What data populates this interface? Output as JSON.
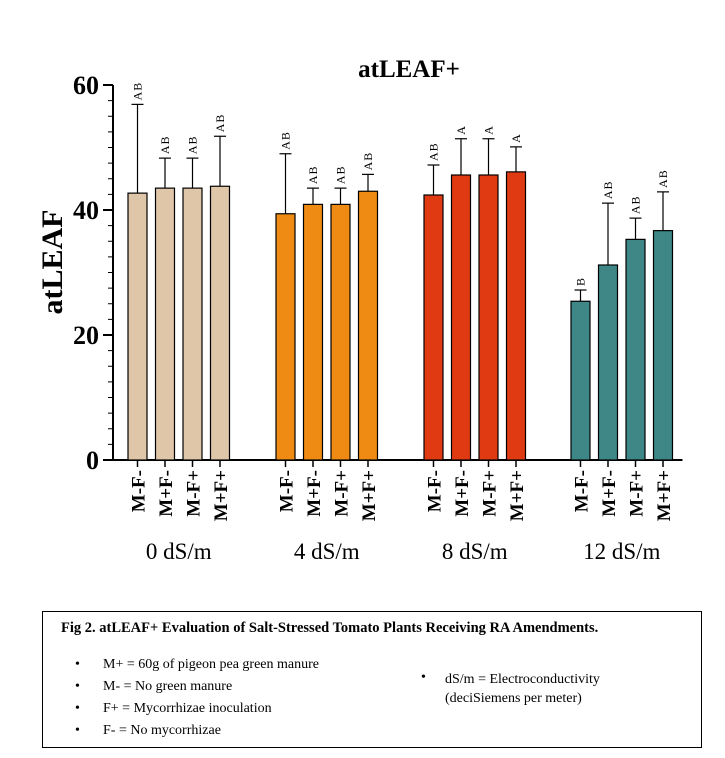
{
  "chart_data": {
    "type": "bar",
    "title": "atLEAF+",
    "ylabel": "atLEAF",
    "ylim": [
      0,
      60
    ],
    "yticks": [
      "0",
      "20",
      "40",
      "60"
    ],
    "groups": [
      {
        "label": "0 dS/m",
        "color": "#dfc6a8",
        "bars": [
          {
            "category": "M-F-",
            "value": 42.7,
            "error": 14.2,
            "sig": "AB"
          },
          {
            "category": "M+F-",
            "value": 43.5,
            "error": 4.8,
            "sig": "AB"
          },
          {
            "category": "M-F+",
            "value": 43.5,
            "error": 4.8,
            "sig": "AB"
          },
          {
            "category": "M+F+",
            "value": 43.8,
            "error": 8.0,
            "sig": "AB"
          }
        ]
      },
      {
        "label": "4 dS/m",
        "color": "#ef8a12",
        "bars": [
          {
            "category": "M-F-",
            "value": 39.4,
            "error": 9.6,
            "sig": "AB"
          },
          {
            "category": "M+F-",
            "value": 40.9,
            "error": 2.6,
            "sig": "AB"
          },
          {
            "category": "M-F+",
            "value": 40.9,
            "error": 2.6,
            "sig": "AB"
          },
          {
            "category": "M+F+",
            "value": 43.0,
            "error": 2.7,
            "sig": "AB"
          }
        ]
      },
      {
        "label": "8 dS/m",
        "color": "#e03a12",
        "bars": [
          {
            "category": "M-F-",
            "value": 42.4,
            "error": 4.8,
            "sig": "AB"
          },
          {
            "category": "M+F-",
            "value": 45.6,
            "error": 5.8,
            "sig": "A"
          },
          {
            "category": "M-F+",
            "value": 45.6,
            "error": 5.8,
            "sig": "A"
          },
          {
            "category": "M+F+",
            "value": 46.1,
            "error": 4.0,
            "sig": "A"
          }
        ]
      },
      {
        "label": "12 dS/m",
        "color": "#3f8787",
        "bars": [
          {
            "category": "M-F-",
            "value": 25.4,
            "error": 1.8,
            "sig": "B"
          },
          {
            "category": "M+F-",
            "value": 31.2,
            "error": 9.9,
            "sig": "AB"
          },
          {
            "category": "M-F+",
            "value": 35.3,
            "error": 3.4,
            "sig": "AB"
          },
          {
            "category": "M+F+",
            "value": 36.7,
            "error": 6.2,
            "sig": "AB"
          }
        ]
      }
    ]
  },
  "caption": {
    "title": "Fig 2. atLEAF+ Evaluation of Salt-Stressed Tomato Plants Receiving RA Amendments.",
    "bullet": "•",
    "items": [
      "M+ = 60g of pigeon pea green manure",
      "M- = No green manure",
      "F+ = Mycorrhizae inoculation",
      "F- = No mycorrhizae"
    ],
    "right_line1": "dS/m = Electroconductivity",
    "right_line2": "(deciSiemens per meter)"
  }
}
